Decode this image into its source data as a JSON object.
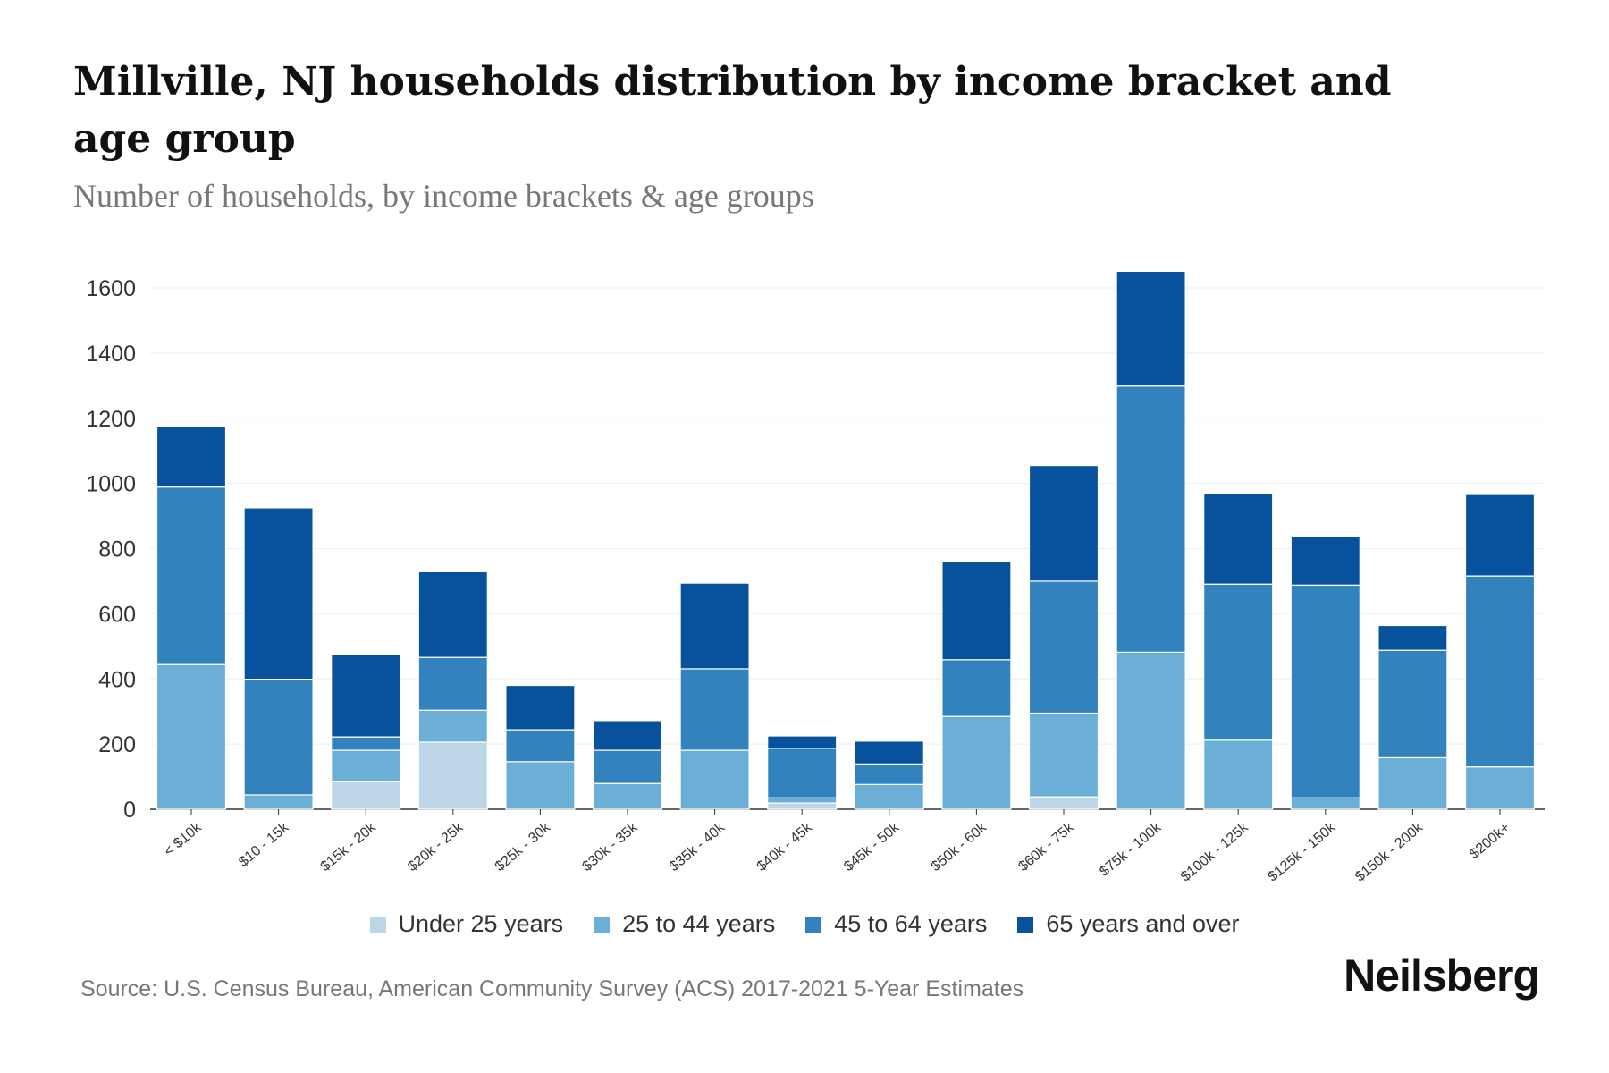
{
  "title": "Millville, NJ households distribution by income bracket and age group",
  "subtitle": "Number of households, by income brackets & age groups",
  "source": "Source: U.S. Census Bureau, American Community Survey (ACS) 2017-2021 5-Year Estimates",
  "brand": "Neilsberg",
  "chart_data": {
    "type": "bar",
    "stacked": true,
    "title": "Millville, NJ households distribution by income bracket and age group",
    "xlabel": "",
    "ylabel": "Number of households",
    "ylim": [
      0,
      1700
    ],
    "yticks": [
      0,
      200,
      400,
      600,
      800,
      1000,
      1200,
      1400,
      1600
    ],
    "grid": true,
    "legend_position": "bottom",
    "categories": [
      "< $10k",
      "$10 - 15k",
      "$15k - 20k",
      "$20k - 25k",
      "$25k - 30k",
      "$30k - 35k",
      "$35k - 40k",
      "$40k - 45k",
      "$45k - 50k",
      "$50k - 60k",
      "$60k - 75k",
      "$75k - 100k",
      "$100k - 125k",
      "$125k - 150k",
      "$150k - 200k",
      "$200k+"
    ],
    "series": [
      {
        "name": "Under 25 years",
        "color": "#bcd6e8",
        "values": [
          0,
          0,
          86,
          206,
          0,
          0,
          0,
          19,
          0,
          0,
          38,
          0,
          0,
          0,
          0,
          0
        ]
      },
      {
        "name": "25 to 44 years",
        "color": "#6baed6",
        "values": [
          444,
          44,
          95,
          98,
          146,
          79,
          181,
          16,
          76,
          285,
          257,
          482,
          212,
          35,
          158,
          130
        ]
      },
      {
        "name": "45 to 64 years",
        "color": "#3182bd",
        "values": [
          545,
          355,
          41,
          162,
          98,
          102,
          250,
          152,
          63,
          174,
          405,
          817,
          479,
          653,
          330,
          586
        ]
      },
      {
        "name": "65 years and over",
        "color": "#08519c",
        "values": [
          187,
          526,
          253,
          263,
          136,
          91,
          263,
          38,
          70,
          301,
          355,
          352,
          279,
          149,
          76,
          250
        ]
      }
    ]
  }
}
